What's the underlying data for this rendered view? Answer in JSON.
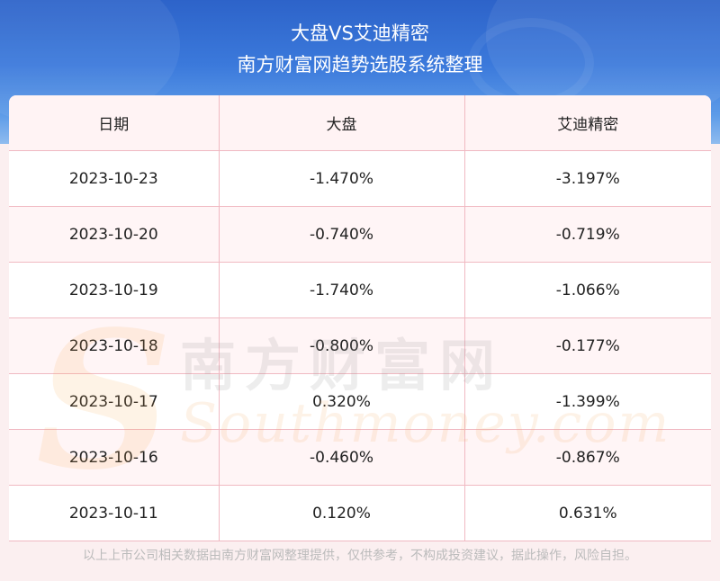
{
  "header": {
    "title": "大盘VS艾迪精密",
    "subtitle": "南方财富网趋势选股系统整理"
  },
  "table": {
    "columns": [
      "日期",
      "大盘",
      "艾迪精密"
    ],
    "rows": [
      [
        "2023-10-23",
        "-1.470%",
        "-3.197%"
      ],
      [
        "2023-10-20",
        "-0.740%",
        "-0.719%"
      ],
      [
        "2023-10-19",
        "-1.740%",
        "-1.066%"
      ],
      [
        "2023-10-18",
        "-0.800%",
        "-0.177%"
      ],
      [
        "2023-10-17",
        "0.320%",
        "-1.399%"
      ],
      [
        "2023-10-16",
        "-0.460%",
        "-0.867%"
      ],
      [
        "2023-10-11",
        "0.120%",
        "0.631%"
      ]
    ]
  },
  "watermark": {
    "cn": "南方财富网",
    "en": "Southmoney.com"
  },
  "footer": {
    "disclaimer": "以上上市公司相关数据由南方财富网整理提供，仅供参考，不构成投资建议，据此操作，风险自担。"
  }
}
